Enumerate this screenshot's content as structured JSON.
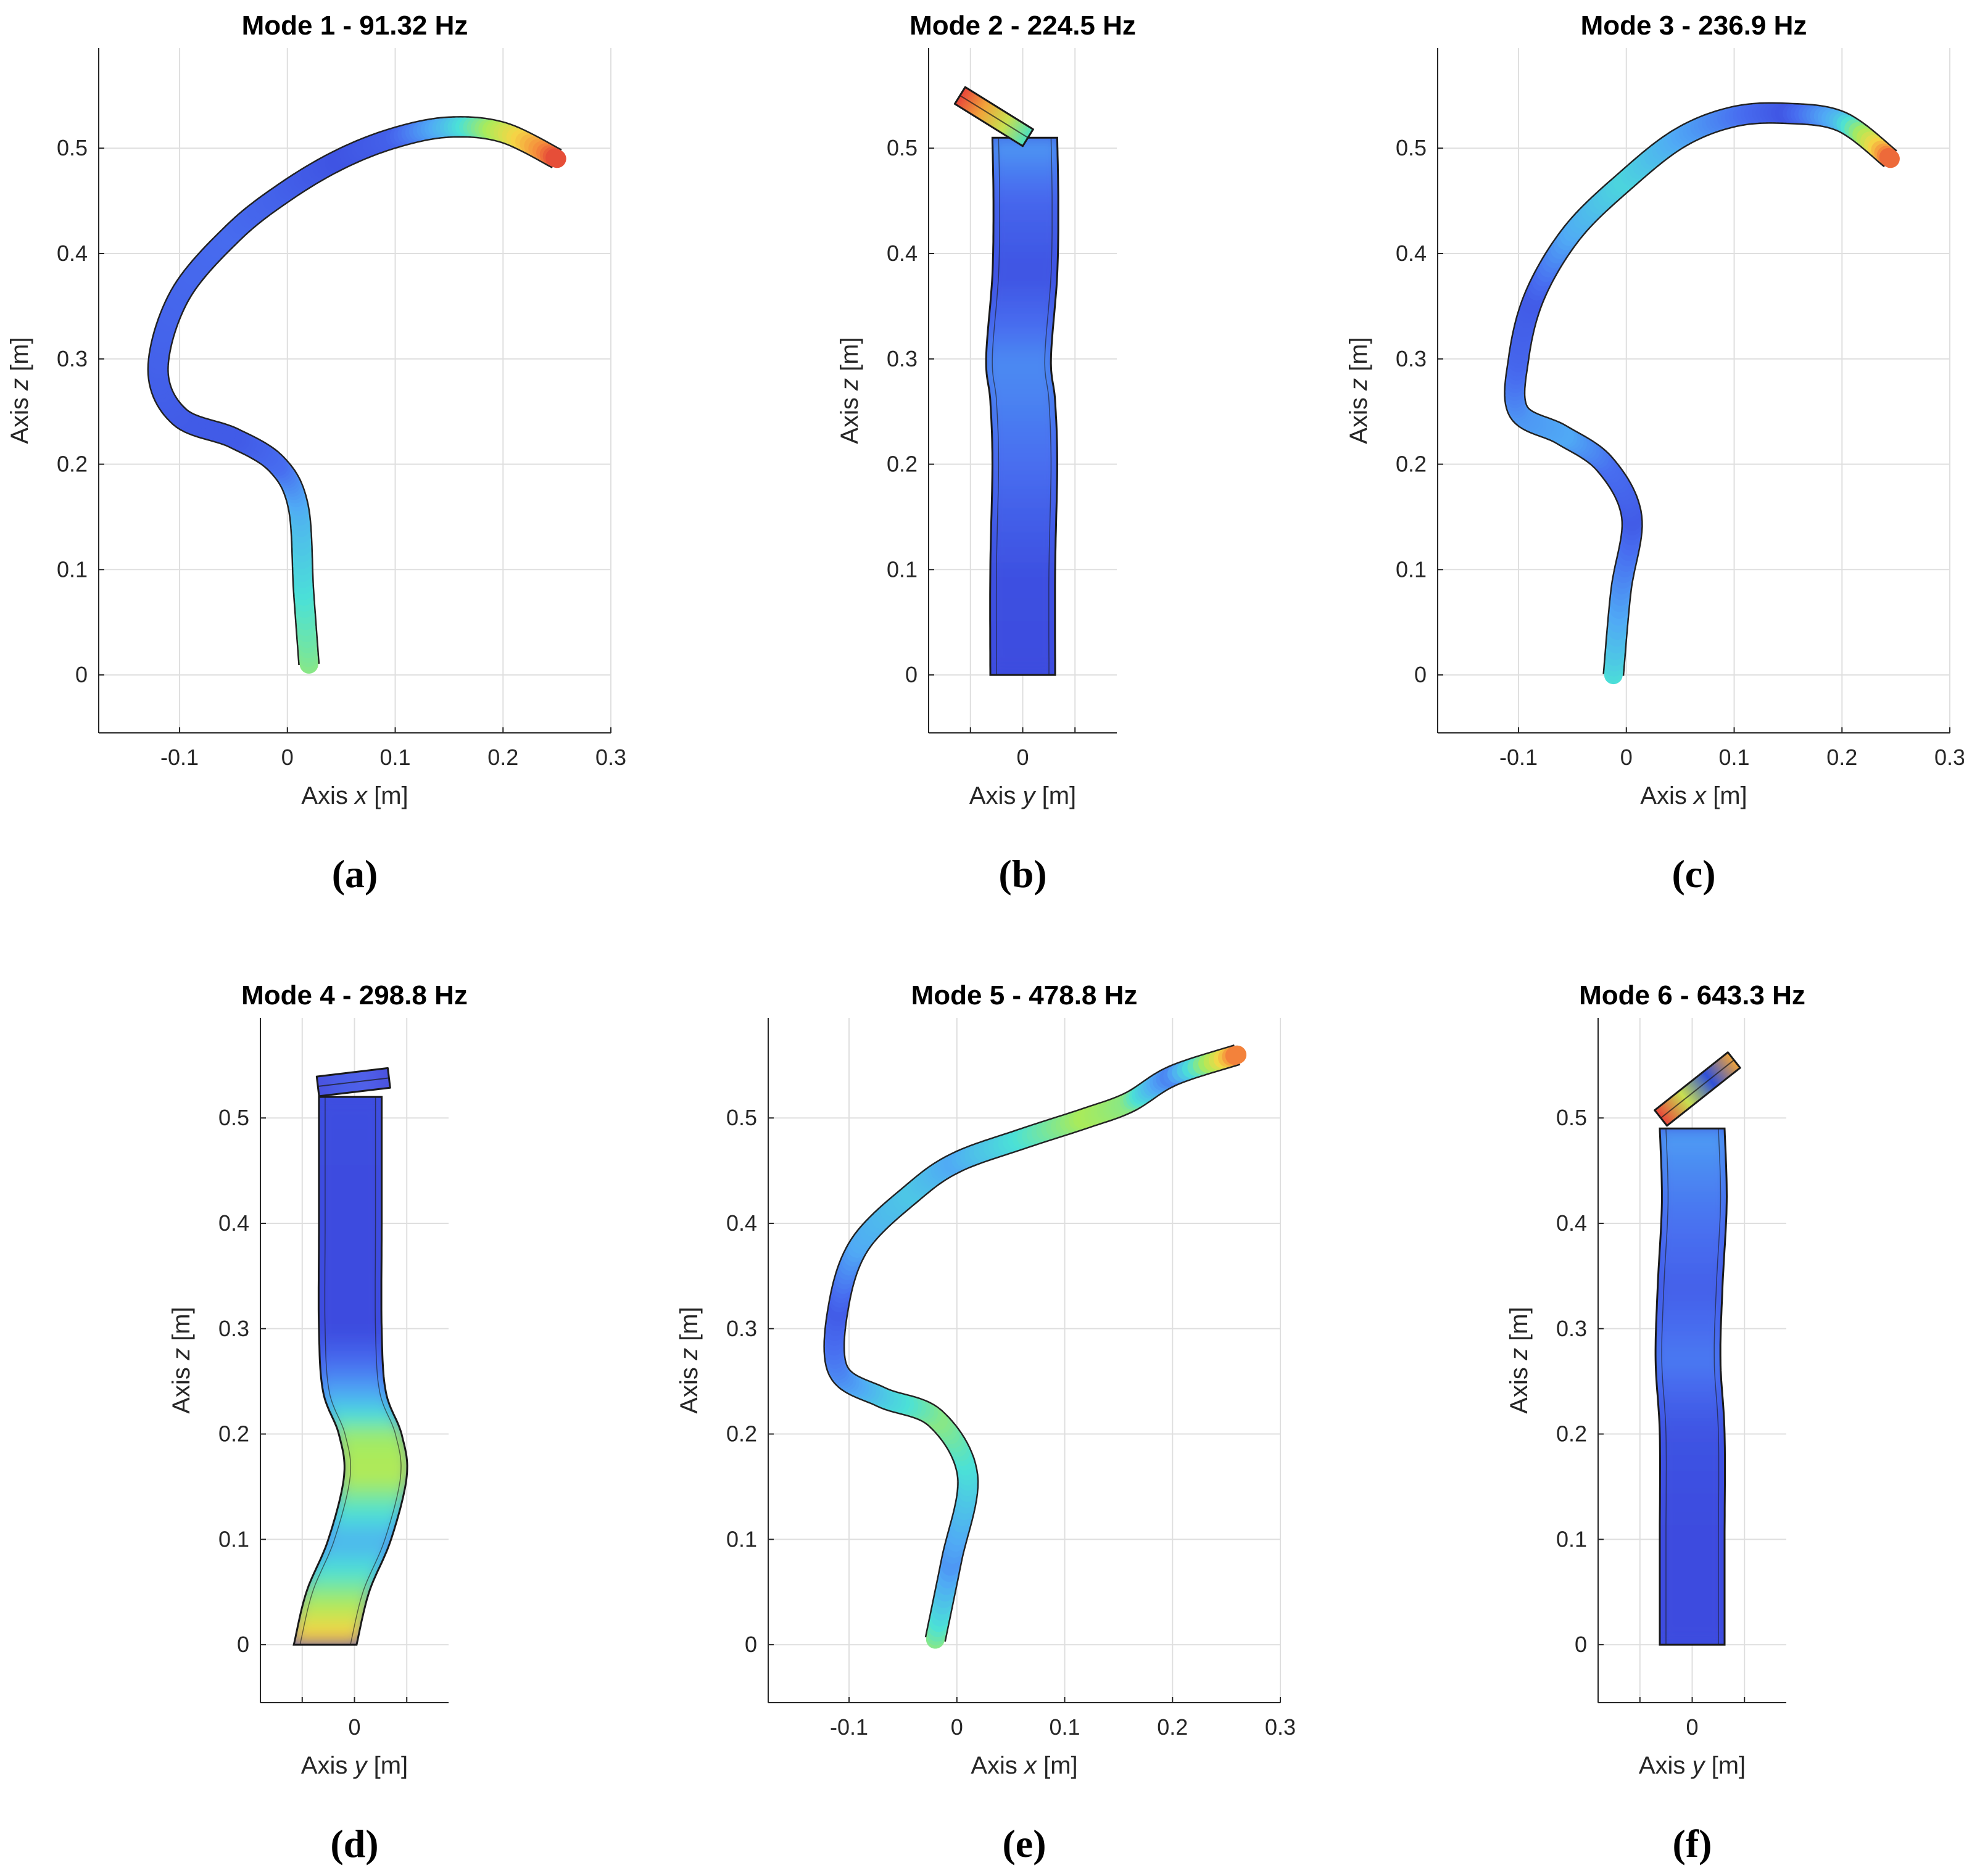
{
  "panels": [
    {
      "caption": "(a)",
      "title": "Mode 1 - 91.32 Hz",
      "xlabel_prefix": "Axis ",
      "xlabel_var": "x",
      "xlabel_unit": "  [m]",
      "ylabel_prefix": "Axis ",
      "ylabel_var": "z",
      "ylabel_unit": "  [m]",
      "view": "xz",
      "xlim": [
        -0.175,
        0.3
      ],
      "ylim": [
        -0.055,
        0.595
      ],
      "xticks": [
        -0.1,
        0,
        0.1,
        0.2,
        0.3
      ],
      "xtick_labels": [
        "-0.1",
        "0",
        "0.1",
        "0.2",
        "0.3"
      ],
      "yticks": [
        0,
        0.1,
        0.2,
        0.3,
        0.4,
        0.5
      ],
      "ytick_labels": [
        "0",
        "0.1",
        "0.2",
        "0.3",
        "0.4",
        "0.5"
      ],
      "shape_points": [
        {
          "x": 0.02,
          "z": 0.01,
          "d": 0.55
        },
        {
          "x": 0.015,
          "z": 0.08,
          "d": 0.45
        },
        {
          "x": 0.01,
          "z": 0.16,
          "d": 0.32
        },
        {
          "x": -0.01,
          "z": 0.2,
          "d": 0.15
        },
        {
          "x": -0.05,
          "z": 0.225,
          "d": 0.08
        },
        {
          "x": -0.1,
          "z": 0.245,
          "d": 0.08
        },
        {
          "x": -0.12,
          "z": 0.29,
          "d": 0.1
        },
        {
          "x": -0.1,
          "z": 0.36,
          "d": 0.12
        },
        {
          "x": -0.05,
          "z": 0.42,
          "d": 0.14
        },
        {
          "x": 0.0,
          "z": 0.46,
          "d": 0.1
        },
        {
          "x": 0.05,
          "z": 0.49,
          "d": 0.05
        },
        {
          "x": 0.1,
          "z": 0.51,
          "d": 0.1
        },
        {
          "x": 0.15,
          "z": 0.52,
          "d": 0.35
        },
        {
          "x": 0.2,
          "z": 0.515,
          "d": 0.65
        },
        {
          "x": 0.25,
          "z": 0.49,
          "d": 0.98
        }
      ]
    },
    {
      "caption": "(b)",
      "title": "Mode 2 - 224.5 Hz",
      "xlabel_prefix": "Axis ",
      "xlabel_var": "y",
      "xlabel_unit": "  [m]",
      "ylabel_prefix": "Axis ",
      "ylabel_var": "z",
      "ylabel_unit": "  [m]",
      "view": "yz",
      "xlim": [
        -0.09,
        0.09
      ],
      "ylim": [
        -0.055,
        0.595
      ],
      "xticks": [
        0
      ],
      "xtick_labels": [
        "0"
      ],
      "minor_xticks": [
        -0.05,
        0.05
      ],
      "yticks": [
        0,
        0.1,
        0.2,
        0.3,
        0.4,
        0.5
      ],
      "ytick_labels": [
        "0",
        "0.1",
        "0.2",
        "0.3",
        "0.4",
        "0.5"
      ],
      "half_width": 0.031,
      "shape_points": [
        {
          "x": 0.0,
          "z": 0.0,
          "d": 0.02
        },
        {
          "x": 0.0,
          "z": 0.1,
          "d": 0.04
        },
        {
          "x": 0.002,
          "z": 0.2,
          "d": 0.15
        },
        {
          "x": 0.0,
          "z": 0.26,
          "d": 0.2
        },
        {
          "x": -0.004,
          "z": 0.3,
          "d": 0.22
        },
        {
          "x": 0.002,
          "z": 0.38,
          "d": 0.05
        },
        {
          "x": 0.003,
          "z": 0.45,
          "d": 0.12
        },
        {
          "x": 0.002,
          "z": 0.51,
          "d": 0.28
        }
      ],
      "end_cap": {
        "x1": -0.06,
        "z1": 0.55,
        "x2": 0.005,
        "z2": 0.51,
        "colors": [
          "#e8443a",
          "#f0a43a",
          "#c8e050",
          "#4be0c0"
        ]
      }
    },
    {
      "caption": "(c)",
      "title": "Mode 3 - 236.9 Hz",
      "xlabel_prefix": "Axis ",
      "xlabel_var": "x",
      "xlabel_unit": "  [m]",
      "ylabel_prefix": "Axis ",
      "ylabel_var": "z",
      "ylabel_unit": "  [m]",
      "view": "xz",
      "xlim": [
        -0.175,
        0.3
      ],
      "ylim": [
        -0.055,
        0.595
      ],
      "xticks": [
        -0.1,
        0,
        0.1,
        0.2,
        0.3
      ],
      "xtick_labels": [
        "-0.1",
        "0",
        "0.1",
        "0.2",
        "0.3"
      ],
      "yticks": [
        0,
        0.1,
        0.2,
        0.3,
        0.4,
        0.5
      ],
      "ytick_labels": [
        "0",
        "0.1",
        "0.2",
        "0.3",
        "0.4",
        "0.5"
      ],
      "shape_points": [
        {
          "x": -0.012,
          "z": 0.0,
          "d": 0.45
        },
        {
          "x": -0.005,
          "z": 0.08,
          "d": 0.25
        },
        {
          "x": 0.005,
          "z": 0.15,
          "d": 0.08
        },
        {
          "x": -0.02,
          "z": 0.2,
          "d": 0.15
        },
        {
          "x": -0.06,
          "z": 0.228,
          "d": 0.3
        },
        {
          "x": -0.1,
          "z": 0.25,
          "d": 0.25
        },
        {
          "x": -0.1,
          "z": 0.3,
          "d": 0.12
        },
        {
          "x": -0.085,
          "z": 0.36,
          "d": 0.08
        },
        {
          "x": -0.05,
          "z": 0.42,
          "d": 0.3
        },
        {
          "x": 0.0,
          "z": 0.47,
          "d": 0.42
        },
        {
          "x": 0.05,
          "z": 0.51,
          "d": 0.3
        },
        {
          "x": 0.1,
          "z": 0.53,
          "d": 0.18
        },
        {
          "x": 0.15,
          "z": 0.533,
          "d": 0.06
        },
        {
          "x": 0.2,
          "z": 0.525,
          "d": 0.35
        },
        {
          "x": 0.245,
          "z": 0.49,
          "d": 0.95
        }
      ]
    },
    {
      "caption": "(d)",
      "title": "Mode 4 - 298.8 Hz",
      "xlabel_prefix": "Axis ",
      "xlabel_var": "y",
      "xlabel_unit": "  [m]",
      "ylabel_prefix": "Axis ",
      "ylabel_var": "z",
      "ylabel_unit": "  [m]",
      "view": "yz",
      "xlim": [
        -0.09,
        0.09
      ],
      "ylim": [
        -0.055,
        0.595
      ],
      "xticks": [
        0
      ],
      "xtick_labels": [
        "0"
      ],
      "minor_xticks": [
        -0.05,
        0.05
      ],
      "yticks": [
        0,
        0.1,
        0.2,
        0.3,
        0.4,
        0.5
      ],
      "ytick_labels": [
        "0",
        "0.1",
        "0.2",
        "0.3",
        "0.4",
        "0.5"
      ],
      "half_width": 0.03,
      "shape_points": [
        {
          "x": -0.028,
          "z": 0.0,
          "d": 0.85
        },
        {
          "x": -0.016,
          "z": 0.05,
          "d": 0.55
        },
        {
          "x": 0.005,
          "z": 0.1,
          "d": 0.32
        },
        {
          "x": 0.02,
          "z": 0.16,
          "d": 0.62
        },
        {
          "x": 0.015,
          "z": 0.2,
          "d": 0.58
        },
        {
          "x": 0.0,
          "z": 0.24,
          "d": 0.3
        },
        {
          "x": -0.004,
          "z": 0.3,
          "d": 0.02
        },
        {
          "x": -0.004,
          "z": 0.4,
          "d": 0.02
        },
        {
          "x": -0.004,
          "z": 0.52,
          "d": 0.03
        }
      ],
      "end_cap": {
        "x1": -0.035,
        "z1": 0.53,
        "x2": 0.033,
        "z2": 0.538,
        "colors": [
          "#4a52e0",
          "#4a5ee8",
          "#5060e8",
          "#4a52e0"
        ]
      }
    },
    {
      "caption": "(e)",
      "title": "Mode 5 - 478.8 Hz",
      "xlabel_prefix": "Axis ",
      "xlabel_var": "x",
      "xlabel_unit": "  [m]",
      "ylabel_prefix": "Axis ",
      "ylabel_var": "z",
      "ylabel_unit": "  [m]",
      "view": "xz",
      "xlim": [
        -0.175,
        0.3
      ],
      "ylim": [
        -0.055,
        0.595
      ],
      "xticks": [
        -0.1,
        0,
        0.1,
        0.2,
        0.3
      ],
      "xtick_labels": [
        "-0.1",
        "0",
        "0.1",
        "0.2",
        "0.3"
      ],
      "yticks": [
        0,
        0.1,
        0.2,
        0.3,
        0.4,
        0.5
      ],
      "ytick_labels": [
        "0",
        "0.1",
        "0.2",
        "0.3",
        "0.4",
        "0.5"
      ],
      "shape_points": [
        {
          "x": -0.02,
          "z": 0.005,
          "d": 0.55
        },
        {
          "x": -0.005,
          "z": 0.08,
          "d": 0.25
        },
        {
          "x": 0.01,
          "z": 0.16,
          "d": 0.42
        },
        {
          "x": -0.02,
          "z": 0.215,
          "d": 0.55
        },
        {
          "x": -0.07,
          "z": 0.235,
          "d": 0.4
        },
        {
          "x": -0.11,
          "z": 0.26,
          "d": 0.22
        },
        {
          "x": -0.11,
          "z": 0.32,
          "d": 0.08
        },
        {
          "x": -0.09,
          "z": 0.38,
          "d": 0.3
        },
        {
          "x": -0.04,
          "z": 0.43,
          "d": 0.38
        },
        {
          "x": 0.0,
          "z": 0.458,
          "d": 0.3
        },
        {
          "x": 0.06,
          "z": 0.48,
          "d": 0.45
        },
        {
          "x": 0.12,
          "z": 0.5,
          "d": 0.6
        },
        {
          "x": 0.16,
          "z": 0.515,
          "d": 0.55
        },
        {
          "x": 0.2,
          "z": 0.54,
          "d": 0.2
        },
        {
          "x": 0.26,
          "z": 0.56,
          "d": 0.92
        }
      ]
    },
    {
      "caption": "(f)",
      "title": "Mode 6 - 643.3 Hz",
      "xlabel_prefix": "Axis ",
      "xlabel_var": "y",
      "xlabel_unit": "  [m]",
      "ylabel_prefix": "Axis ",
      "ylabel_var": "z",
      "ylabel_unit": "  [m]",
      "view": "yz",
      "xlim": [
        -0.09,
        0.09
      ],
      "ylim": [
        -0.055,
        0.595
      ],
      "xticks": [
        0
      ],
      "xtick_labels": [
        "0"
      ],
      "minor_xticks": [
        -0.05,
        0.05
      ],
      "yticks": [
        0,
        0.1,
        0.2,
        0.3,
        0.4,
        0.5
      ],
      "ytick_labels": [
        "0",
        "0.1",
        "0.2",
        "0.3",
        "0.4",
        "0.5"
      ],
      "half_width": 0.031,
      "shape_points": [
        {
          "x": 0.0,
          "z": 0.0,
          "d": 0.02
        },
        {
          "x": 0.0,
          "z": 0.1,
          "d": 0.02
        },
        {
          "x": 0.0,
          "z": 0.2,
          "d": 0.05
        },
        {
          "x": -0.004,
          "z": 0.27,
          "d": 0.18
        },
        {
          "x": -0.002,
          "z": 0.34,
          "d": 0.1
        },
        {
          "x": 0.002,
          "z": 0.42,
          "d": 0.18
        },
        {
          "x": 0.0,
          "z": 0.49,
          "d": 0.28
        }
      ],
      "end_cap": {
        "x1": -0.03,
        "z1": 0.5,
        "x2": 0.04,
        "z2": 0.555,
        "colors": [
          "#e8443a",
          "#c8e050",
          "#3050d8",
          "#f0a43a"
        ]
      }
    }
  ],
  "chart_data": [
    {
      "type": "line",
      "title": "Mode 1 - 91.32 Hz",
      "xlabel": "Axis x  [m]",
      "ylabel": "Axis z  [m]",
      "xlim": [
        -0.175,
        0.3
      ],
      "ylim": [
        -0.055,
        0.595
      ],
      "x": [
        0.02,
        0.015,
        0.01,
        -0.01,
        -0.05,
        -0.1,
        -0.12,
        -0.1,
        -0.05,
        0.0,
        0.05,
        0.1,
        0.15,
        0.2,
        0.25
      ],
      "y": [
        0.01,
        0.08,
        0.16,
        0.2,
        0.225,
        0.245,
        0.29,
        0.36,
        0.42,
        0.46,
        0.49,
        0.51,
        0.52,
        0.515,
        0.49
      ]
    },
    {
      "type": "line",
      "title": "Mode 2 - 224.5 Hz",
      "xlabel": "Axis y  [m]",
      "ylabel": "Axis z  [m]",
      "xlim": [
        -0.09,
        0.09
      ],
      "ylim": [
        -0.055,
        0.595
      ],
      "x": [
        0.0,
        0.0,
        0.002,
        0.0,
        -0.004,
        0.002,
        0.003,
        0.002
      ],
      "y": [
        0.0,
        0.1,
        0.2,
        0.26,
        0.3,
        0.38,
        0.45,
        0.51
      ]
    },
    {
      "type": "line",
      "title": "Mode 3 - 236.9 Hz",
      "xlabel": "Axis x  [m]",
      "ylabel": "Axis z  [m]",
      "xlim": [
        -0.175,
        0.3
      ],
      "ylim": [
        -0.055,
        0.595
      ],
      "x": [
        -0.012,
        -0.005,
        0.005,
        -0.02,
        -0.06,
        -0.1,
        -0.1,
        -0.085,
        -0.05,
        0.0,
        0.05,
        0.1,
        0.15,
        0.2,
        0.245
      ],
      "y": [
        0.0,
        0.08,
        0.15,
        0.2,
        0.228,
        0.25,
        0.3,
        0.36,
        0.42,
        0.47,
        0.51,
        0.53,
        0.533,
        0.525,
        0.49
      ]
    },
    {
      "type": "line",
      "title": "Mode 4 - 298.8 Hz",
      "xlabel": "Axis y  [m]",
      "ylabel": "Axis z  [m]",
      "xlim": [
        -0.09,
        0.09
      ],
      "ylim": [
        -0.055,
        0.595
      ],
      "x": [
        -0.028,
        -0.016,
        0.005,
        0.02,
        0.015,
        0.0,
        -0.004,
        -0.004,
        -0.004
      ],
      "y": [
        0.0,
        0.05,
        0.1,
        0.16,
        0.2,
        0.24,
        0.3,
        0.4,
        0.52
      ]
    },
    {
      "type": "line",
      "title": "Mode 5 - 478.8 Hz",
      "xlabel": "Axis x  [m]",
      "ylabel": "Axis z  [m]",
      "xlim": [
        -0.175,
        0.3
      ],
      "ylim": [
        -0.055,
        0.595
      ],
      "x": [
        -0.02,
        -0.005,
        0.01,
        -0.02,
        -0.07,
        -0.11,
        -0.11,
        -0.09,
        -0.04,
        0.0,
        0.06,
        0.12,
        0.16,
        0.2,
        0.26
      ],
      "y": [
        0.005,
        0.08,
        0.16,
        0.215,
        0.235,
        0.26,
        0.32,
        0.38,
        0.43,
        0.458,
        0.48,
        0.5,
        0.515,
        0.54,
        0.56
      ]
    },
    {
      "type": "line",
      "title": "Mode 6 - 643.3 Hz",
      "xlabel": "Axis y  [m]",
      "ylabel": "Axis z  [m]",
      "xlim": [
        -0.09,
        0.09
      ],
      "ylim": [
        -0.055,
        0.595
      ],
      "x": [
        0.0,
        0.0,
        0.0,
        -0.004,
        -0.002,
        0.002,
        0.0
      ],
      "y": [
        0.0,
        0.1,
        0.2,
        0.27,
        0.34,
        0.42,
        0.49
      ]
    }
  ]
}
